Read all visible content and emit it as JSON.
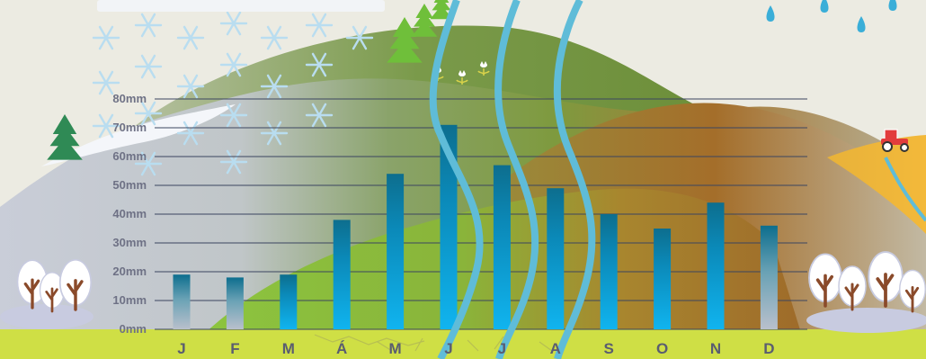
{
  "chart_data": {
    "type": "bar",
    "categories": [
      "J",
      "F",
      "M",
      "Á",
      "M",
      "J",
      "J",
      "A",
      "S",
      "O",
      "N",
      "D"
    ],
    "values": [
      19,
      18,
      19,
      38,
      54,
      71,
      57,
      49,
      40,
      35,
      44,
      36
    ],
    "y_ticks": [
      "0mm",
      "10mm",
      "20mm",
      "30mm",
      "40mm",
      "50mm",
      "60mm",
      "70mm",
      "80mm"
    ],
    "tick_values": [
      0,
      10,
      20,
      30,
      40,
      50,
      60,
      70,
      80
    ],
    "ylim": [
      0,
      80
    ],
    "grid": true,
    "title": "",
    "xlabel": "",
    "ylabel": ""
  },
  "colors": {
    "bar_top": "#0d6e8e",
    "bar_bottom": "#10b4ef",
    "bar_winter_bottom": "#b9c0cc",
    "gridline": "#3b4560",
    "river": "#5fbcd8",
    "meadow": "#cfdf45",
    "background": "#ecebe2"
  },
  "icons": [
    "snowflake-icon",
    "raindrop-icon",
    "pine-tree-icon",
    "tulip-icon",
    "tractor-icon",
    "bare-tree-icon"
  ]
}
